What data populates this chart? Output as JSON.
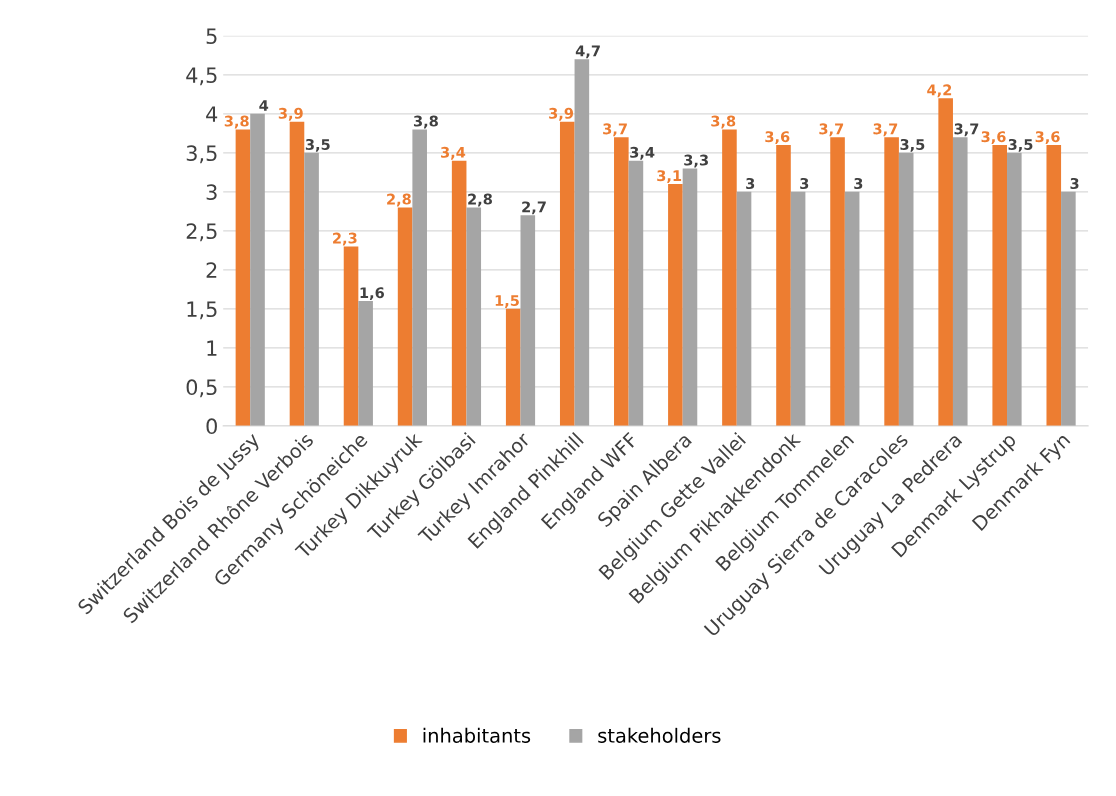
{
  "chart_data": {
    "type": "bar",
    "categories": [
      "Switzerland Bois de Jussy",
      "Switzerland Rhône Verbois",
      "Germany Schöneiche",
      "Turkey Dikkuyruk",
      "Turkey Gölbasi",
      "Turkey Imrahor",
      "England Pinkhill",
      "England WFF",
      "Spain Albera",
      "Belgium Gette Vallei",
      "Belgium Pikhakkendonk",
      "Belgium Tommelen",
      "Uruguay Sierra de Caracoles",
      "Uruguay La Pedrera",
      "Denmark Lystrup",
      "Denmark Fyn"
    ],
    "series": [
      {
        "name": "inhabitants",
        "color": "#ed7d31",
        "values": [
          3.8,
          3.9,
          2.3,
          2.8,
          3.4,
          1.5,
          3.9,
          3.7,
          3.1,
          3.8,
          3.6,
          3.7,
          3.7,
          4.2,
          3.6,
          3.6
        ],
        "value_labels": [
          "3,8",
          "3,9",
          "2,3",
          "2,8",
          "3,4",
          "1,5",
          "3,9",
          "3,7",
          "3,1",
          "3,8",
          "3,6",
          "3,7",
          "3,7",
          "4,2",
          "3,6",
          "3,6"
        ]
      },
      {
        "name": "stakeholders",
        "color": "#a5a5a5",
        "values": [
          4,
          3.5,
          1.6,
          3.8,
          2.8,
          2.7,
          4.7,
          3.4,
          3.3,
          3,
          3,
          3,
          3.5,
          3.7,
          3.5,
          3
        ],
        "value_labels": [
          "4",
          "3,5",
          "1,6",
          "3,8",
          "2,8",
          "2,7",
          "4,7",
          "3,4",
          "3,3",
          "3",
          "3",
          "3",
          "3,5",
          "3,7",
          "3,5",
          "3"
        ]
      }
    ],
    "ylim": [
      0,
      5
    ],
    "yticks": [
      0,
      {
        "value": 0.5,
        "label": "0,5"
      },
      1,
      {
        "value": 1.5,
        "label": "1,5"
      },
      2,
      {
        "value": 2.5,
        "label": "2,5"
      },
      3,
      {
        "value": 3.5,
        "label": "3,5"
      },
      4,
      {
        "value": 4.5,
        "label": "4,5"
      },
      5
    ],
    "grid": "y",
    "legend": "bottom"
  }
}
